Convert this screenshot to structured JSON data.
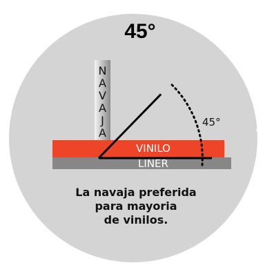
{
  "title": "45°",
  "blade_label": [
    "N",
    "A",
    "V",
    "A",
    "J",
    "A"
  ],
  "vinyl_label": "VINILO",
  "liner_label": "LINER",
  "angle_label": "45°",
  "angle_degrees": 45,
  "caption_lines": [
    "La navaja preferida",
    "para mayoria",
    "de vinilos."
  ],
  "colors": {
    "background_circle": "#d4d4d4",
    "blade_light": "#f4f4f4",
    "blade_dark": "#8a8a8a",
    "vinyl": "#ee4528",
    "liner": "#878787",
    "line": "#000000"
  }
}
